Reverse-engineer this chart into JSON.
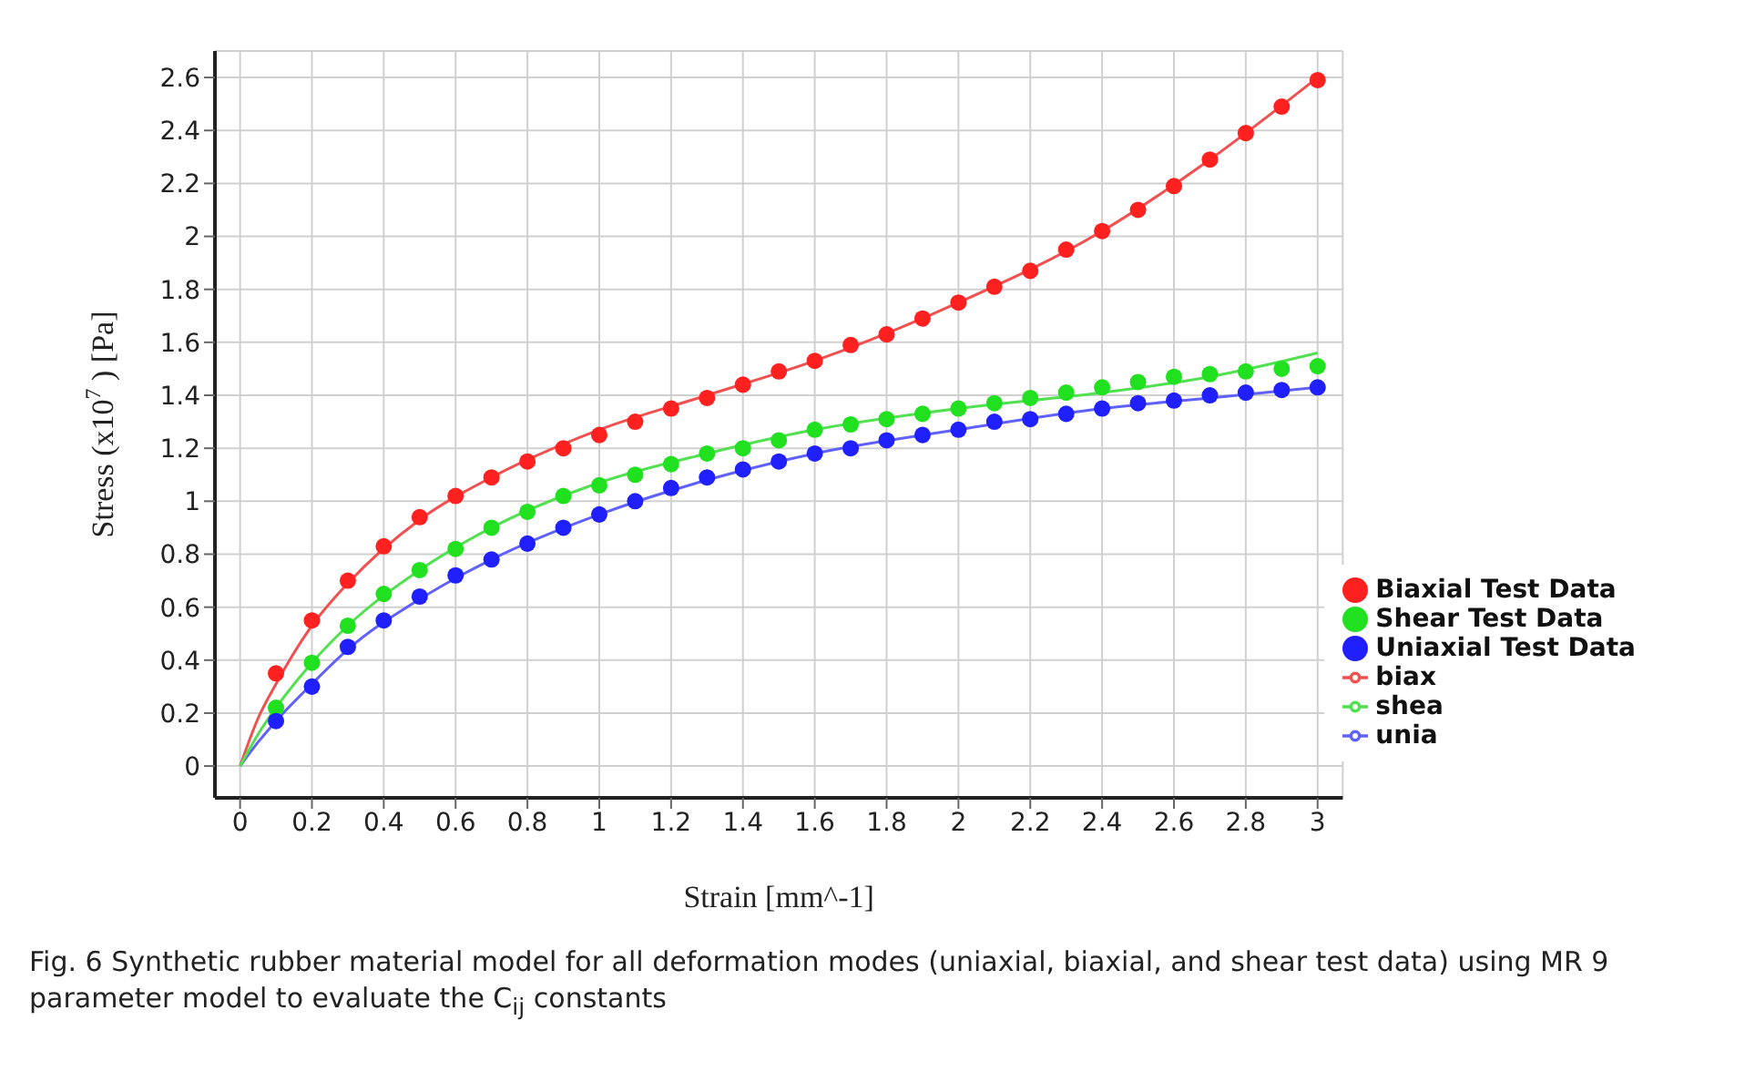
{
  "chart_data": {
    "type": "scatter",
    "xlabel": "Strain [mm^-1]",
    "ylabel": "Stress (x10$^{7}$) [Pa]",
    "annotations": [
      "Fig. 6  Synthetic rubber material model for all deformation modes (uniaxial, biaxial, and shear test data) using MR 9 parameter model to evaluate the C$_{ij}$ constants"
    ],
    "xlim": [
      -0.07,
      3.07
    ],
    "ylim": [
      -0.12,
      2.7
    ],
    "xticks": [
      0,
      0.2,
      0.4,
      0.6,
      0.8,
      1,
      1.2,
      1.4,
      1.6,
      1.8,
      2,
      2.2,
      2.4,
      2.6,
      2.8,
      3
    ],
    "yticks": [
      0,
      0.2,
      0.4,
      0.6,
      0.8,
      1,
      1.2,
      1.4,
      1.6,
      1.8,
      2,
      2.2,
      2.4,
      2.6
    ],
    "grid": true,
    "legend": "bottom right",
    "series": [
      {
        "name": "Biaxial Test Data",
        "marker": "circle",
        "color": "#ff2020",
        "x": [
          0.1,
          0.2,
          0.3,
          0.4,
          0.5,
          0.6,
          0.7,
          0.8,
          0.9,
          1.0,
          1.1,
          1.2,
          1.3,
          1.4,
          1.5,
          1.6,
          1.7,
          1.8,
          1.9,
          2.0,
          2.1,
          2.2,
          2.3,
          2.4,
          2.5,
          2.6,
          2.7,
          2.8,
          2.9,
          3.0
        ],
        "values": [
          0.35,
          0.55,
          0.7,
          0.83,
          0.94,
          1.02,
          1.09,
          1.15,
          1.2,
          1.25,
          1.3,
          1.35,
          1.39,
          1.44,
          1.49,
          1.53,
          1.59,
          1.63,
          1.69,
          1.75,
          1.81,
          1.87,
          1.95,
          2.02,
          2.1,
          2.19,
          2.29,
          2.39,
          2.49,
          2.59
        ]
      },
      {
        "name": "Shear Test Data",
        "marker": "circle",
        "color": "#20e020",
        "x": [
          0.1,
          0.2,
          0.3,
          0.4,
          0.5,
          0.6,
          0.7,
          0.8,
          0.9,
          1.0,
          1.1,
          1.2,
          1.3,
          1.4,
          1.5,
          1.6,
          1.7,
          1.8,
          1.9,
          2.0,
          2.1,
          2.2,
          2.3,
          2.4,
          2.5,
          2.6,
          2.7,
          2.8,
          2.9,
          3.0
        ],
        "values": [
          0.22,
          0.39,
          0.53,
          0.65,
          0.74,
          0.82,
          0.9,
          0.96,
          1.02,
          1.06,
          1.1,
          1.14,
          1.18,
          1.2,
          1.23,
          1.27,
          1.29,
          1.31,
          1.33,
          1.35,
          1.37,
          1.39,
          1.41,
          1.43,
          1.45,
          1.47,
          1.48,
          1.49,
          1.5,
          1.51
        ]
      },
      {
        "name": "unia",
        "type": "line",
        "marker": "none",
        "color": "#6060ff",
        "x": [
          0,
          0.05,
          0.1,
          0.2,
          0.3,
          0.5,
          0.7,
          1.0,
          1.3,
          1.6,
          2.0,
          2.4,
          2.7,
          3.0
        ],
        "values": [
          0,
          0.09,
          0.17,
          0.31,
          0.44,
          0.63,
          0.78,
          0.95,
          1.08,
          1.18,
          1.27,
          1.35,
          1.39,
          1.43
        ]
      },
      {
        "name": "biax",
        "type": "line",
        "marker": "none",
        "color": "#f05050",
        "x": [
          0,
          0.05,
          0.1,
          0.2,
          0.3,
          0.5,
          0.7,
          1.0,
          1.3,
          1.6,
          2.0,
          2.4,
          2.7,
          3.0
        ],
        "values": [
          0,
          0.18,
          0.31,
          0.53,
          0.69,
          0.93,
          1.09,
          1.27,
          1.4,
          1.53,
          1.75,
          2.02,
          2.29,
          2.6
        ]
      },
      {
        "name": "shea",
        "type": "line",
        "marker": "none",
        "color": "#50e050",
        "x": [
          0,
          0.05,
          0.1,
          0.2,
          0.3,
          0.5,
          0.7,
          1.0,
          1.3,
          1.6,
          2.0,
          2.4,
          2.7,
          3.0
        ],
        "values": [
          0,
          0.12,
          0.22,
          0.39,
          0.53,
          0.74,
          0.9,
          1.07,
          1.18,
          1.27,
          1.35,
          1.41,
          1.47,
          1.56
        ]
      },
      {
        "name": "Uniaxial Test Data",
        "marker": "circle",
        "color": "#2020ff",
        "x": [
          0.1,
          0.2,
          0.3,
          0.4,
          0.5,
          0.6,
          0.7,
          0.8,
          0.9,
          1.0,
          1.1,
          1.2,
          1.3,
          1.4,
          1.5,
          1.6,
          1.7,
          1.8,
          1.9,
          2.0,
          2.1,
          2.2,
          2.3,
          2.4,
          2.5,
          2.6,
          2.7,
          2.8,
          2.9,
          3.0
        ],
        "values": [
          0.17,
          0.3,
          0.45,
          0.55,
          0.64,
          0.72,
          0.78,
          0.84,
          0.9,
          0.95,
          1.0,
          1.05,
          1.09,
          1.12,
          1.15,
          1.18,
          1.2,
          1.23,
          1.25,
          1.27,
          1.3,
          1.31,
          1.33,
          1.35,
          1.37,
          1.38,
          1.4,
          1.41,
          1.42,
          1.43
        ]
      }
    ]
  }
}
